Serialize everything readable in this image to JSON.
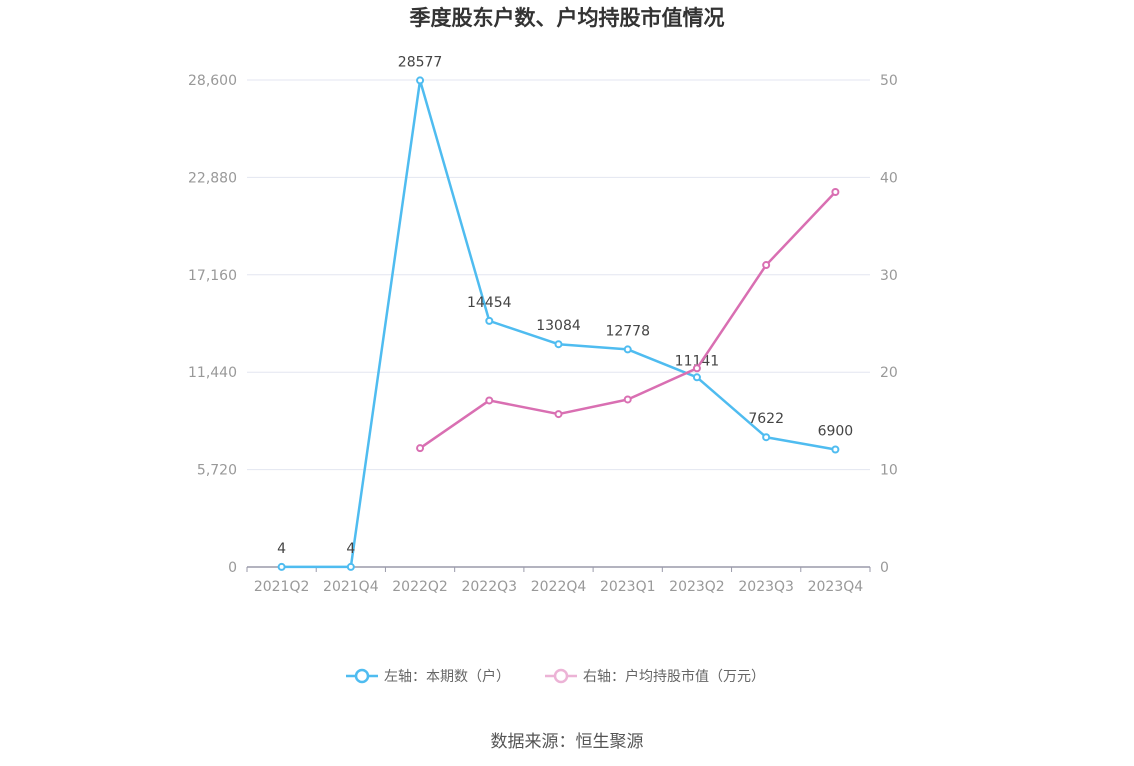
{
  "chart_data": {
    "type": "line",
    "title": "季度股东户数、户均持股市值情况",
    "categories": [
      "2021Q2",
      "2021Q4",
      "2022Q2",
      "2022Q3",
      "2022Q4",
      "2023Q1",
      "2023Q2",
      "2023Q3",
      "2023Q4"
    ],
    "y_left": {
      "ticks": [
        "0",
        "5,720",
        "11,440",
        "17,160",
        "22,880",
        "28,600"
      ],
      "range": [
        0,
        28600
      ]
    },
    "y_right": {
      "ticks": [
        "0",
        "10",
        "20",
        "30",
        "40",
        "50"
      ],
      "range": [
        0,
        50
      ]
    },
    "series": [
      {
        "name": "左轴：本期数（户）",
        "axis": "left",
        "color": "#4fbcf0",
        "values": [
          4,
          4,
          28577,
          14454,
          13084,
          12778,
          11141,
          7622,
          6900
        ],
        "labels": [
          "4",
          "4",
          "28577",
          "14454",
          "13084",
          "12778",
          "11141",
          "7622",
          "6900"
        ]
      },
      {
        "name": "右轴：户均持股市值（万元）",
        "axis": "right",
        "color": "#d96fb2",
        "values": [
          null,
          null,
          12.2,
          17.1,
          15.7,
          17.2,
          20.4,
          31.0,
          38.5
        ]
      }
    ],
    "grid": true,
    "legend_position": "bottom-center"
  },
  "source": "数据来源：恒生聚源"
}
